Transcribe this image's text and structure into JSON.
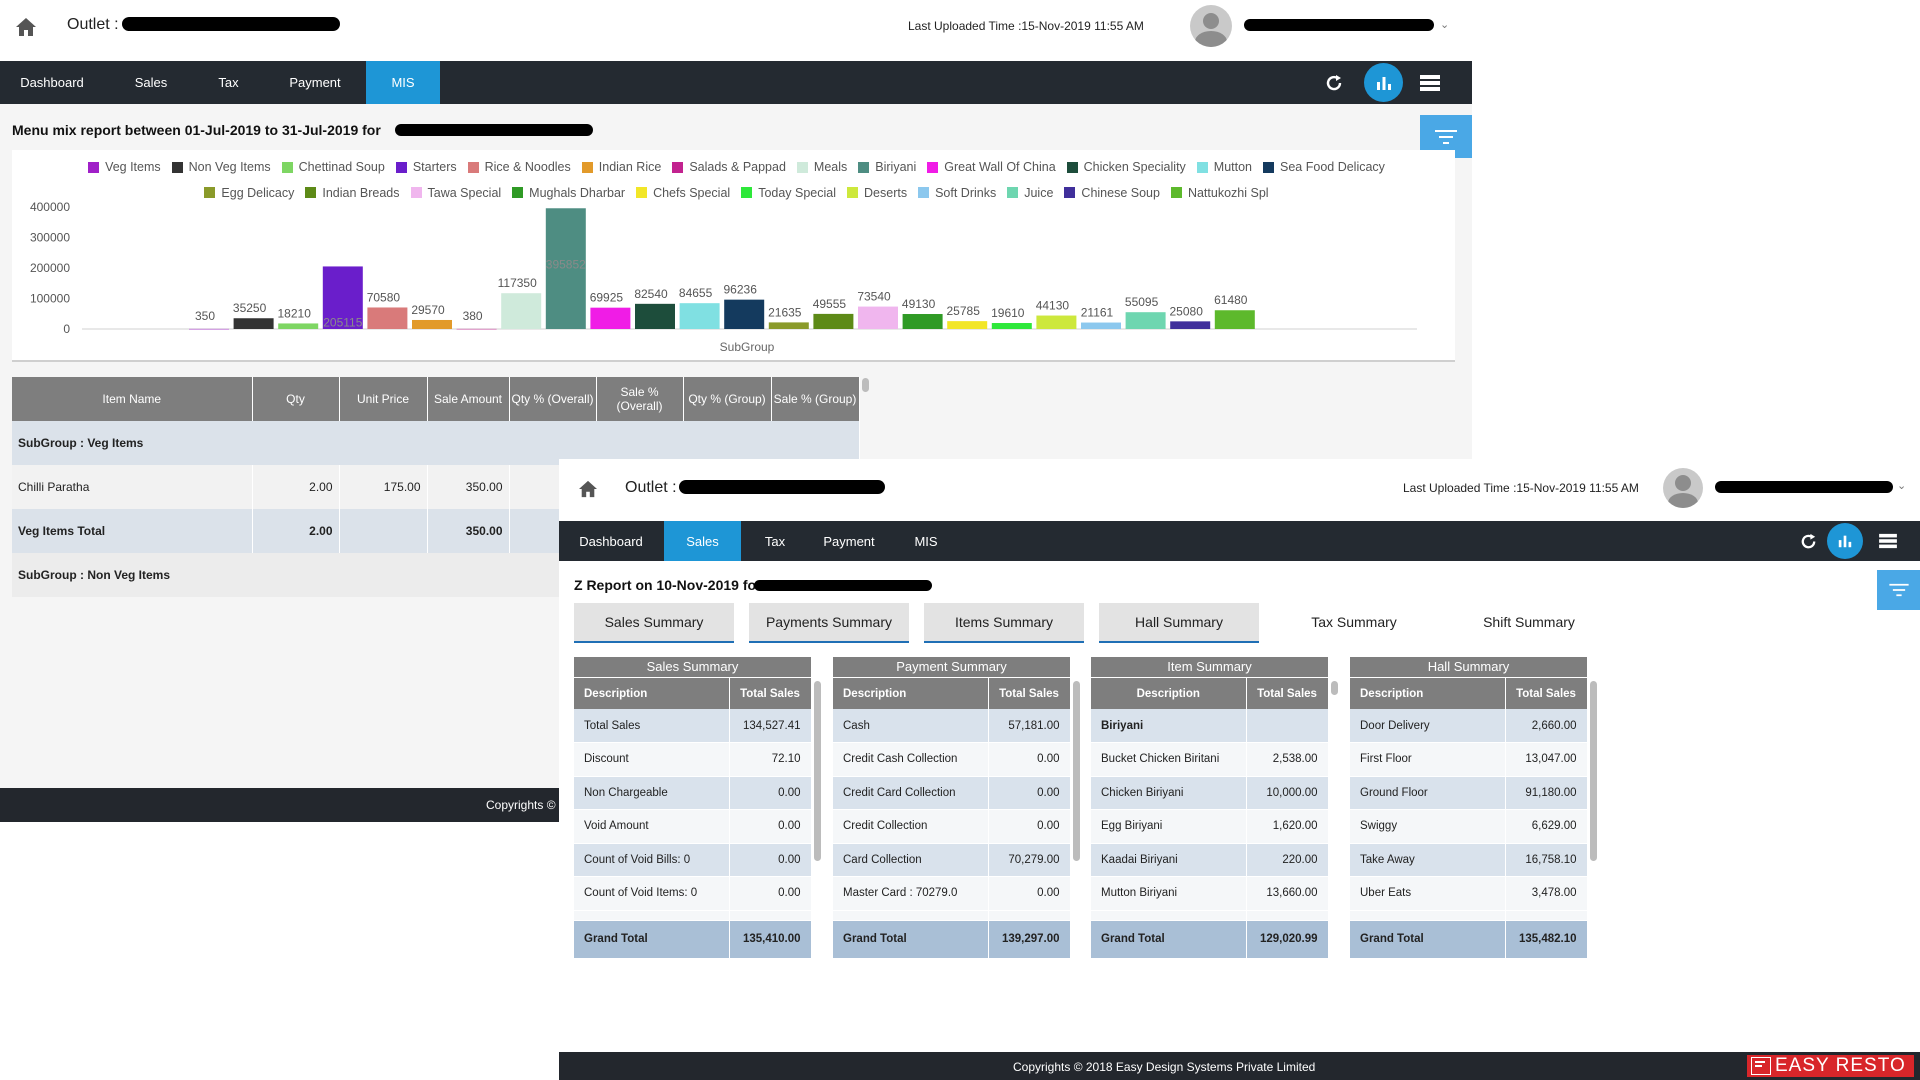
{
  "window1": {
    "outlet_label": "Outlet :",
    "last_uploaded": "Last Uploaded Time :15-Nov-2019 11:55 AM",
    "nav": [
      "Dashboard",
      "Sales",
      "Tax",
      "Payment",
      "MIS"
    ],
    "active_tab": "MIS",
    "report_title": "Menu mix report between 01-Jul-2019 to 31-Jul-2019 for",
    "table": {
      "headers": [
        "Item Name",
        "Qty",
        "Unit Price",
        "Sale Amount",
        "Qty % (Overall)",
        "Sale % (Overall)",
        "Qty % (Group)",
        "Sale % (Group)"
      ],
      "subgroup1": "SubGroup : Veg Items",
      "row": [
        "Chilli Paratha",
        "2.00",
        "175.00",
        "350.00"
      ],
      "total": [
        "Veg Items Total",
        "2.00",
        "",
        "350.00"
      ],
      "subgroup2": "SubGroup : Non Veg Items"
    },
    "footer_text": "Copyrights ©"
  },
  "chart_data": {
    "type": "bar",
    "title": "",
    "xlabel": "SubGroup",
    "ylabel": "",
    "ylim": [
      0,
      400000
    ],
    "yticks": [
      "400000",
      "300000",
      "200000",
      "100000",
      "0"
    ],
    "legend_position": "top",
    "categories": [
      "Veg Items",
      "Non Veg Items",
      "Chettinad Soup",
      "Starters",
      "Rice & Noodles",
      "Indian Rice",
      "Salads & Pappad",
      "Meals",
      "Biriyani",
      "Great Wall Of China",
      "Chicken Speciality",
      "Mutton",
      "Sea Food Delicacy",
      "Egg Delicacy",
      "Indian Breads",
      "Tawa Special",
      "Mughals Dharbar",
      "Chefs Special",
      "Today Special",
      "Deserts",
      "Soft Drinks",
      "Juice",
      "Chinese Soup",
      "Nattukozhi Spl"
    ],
    "values": [
      350,
      35250,
      18210,
      205115,
      70580,
      29570,
      380,
      117350,
      395852,
      69925,
      82540,
      84655,
      96236,
      21635,
      49555,
      73540,
      49130,
      25785,
      19610,
      44130,
      21161,
      55095,
      25080,
      61480
    ],
    "labels": [
      "350",
      "35250",
      "18210",
      "205115",
      "70580",
      "29570",
      "380",
      "117350",
      "395852",
      "69925",
      "82540",
      "84655",
      "96236",
      "21635",
      "49555",
      "73540",
      "49130",
      "25785",
      "19610",
      "44130",
      "21161",
      "55095",
      "25080",
      "61480"
    ],
    "colors": [
      "#a020c8",
      "#333333",
      "#7ed663",
      "#6a1ecb",
      "#d97a7a",
      "#e29a2a",
      "#c2228f",
      "#cfeadb",
      "#4e8d82",
      "#f01ce6",
      "#1d4d3b",
      "#80e0e2",
      "#143a5e",
      "#8a9a2a",
      "#5d8a17",
      "#f0b6ee",
      "#2f9a25",
      "#f2e628",
      "#2ee83a",
      "#cde83c",
      "#8cc8ee",
      "#6ed6b0",
      "#402f9b",
      "#5db92c"
    ]
  },
  "window2": {
    "outlet_label": "Outlet :",
    "last_uploaded": "Last Uploaded Time :15-Nov-2019 11:55 AM",
    "nav": [
      "Dashboard",
      "Sales",
      "Tax",
      "Payment",
      "MIS"
    ],
    "active_tab": "Sales",
    "report_title": "Z Report on 10-Nov-2019 for",
    "tabs": [
      "Sales Summary",
      "Payments Summary",
      "Items Summary",
      "Hall Summary",
      "Tax Summary",
      "Shift Summary"
    ],
    "sections": [
      {
        "title": "Sales Summary",
        "headers": [
          "Description",
          "Total Sales"
        ],
        "rows": [
          [
            "Total Sales",
            "134,527.41"
          ],
          [
            "Discount",
            "72.10"
          ],
          [
            "Non Chargeable",
            "0.00"
          ],
          [
            "Void Amount",
            "0.00"
          ],
          [
            "Count of Void Bills: 0",
            "0.00"
          ],
          [
            "Count of Void Items: 0",
            "0.00"
          ]
        ],
        "grand": [
          "Grand Total",
          "135,410.00"
        ]
      },
      {
        "title": "Payment Summary",
        "headers": [
          "Description",
          "Total Sales"
        ],
        "rows": [
          [
            "Cash",
            "57,181.00"
          ],
          [
            "Credit Cash Collection",
            "0.00"
          ],
          [
            "Credit Card Collection",
            "0.00"
          ],
          [
            "Credit Collection",
            "0.00"
          ],
          [
            "Card Collection",
            "70,279.00"
          ],
          [
            "Master Card : 70279.0",
            "0.00"
          ]
        ],
        "grand": [
          "Grand Total",
          "139,297.00"
        ]
      },
      {
        "title": "Item Summary",
        "headers": [
          "Description",
          "Total Sales"
        ],
        "rows": [
          [
            "Biriyani",
            ""
          ],
          [
            "Bucket Chicken Biritani",
            "2,538.00"
          ],
          [
            "Chicken Biriyani",
            "10,000.00"
          ],
          [
            "Egg Biriyani",
            "1,620.00"
          ],
          [
            "Kaadai Biriyani",
            "220.00"
          ],
          [
            "Mutton Biriyani",
            "13,660.00"
          ]
        ],
        "grand": [
          "Grand Total",
          "129,020.99"
        ]
      },
      {
        "title": "Hall Summary",
        "headers": [
          "Description",
          "Total Sales"
        ],
        "rows": [
          [
            "Door Delivery",
            "2,660.00"
          ],
          [
            "First Floor",
            "13,047.00"
          ],
          [
            "Ground Floor",
            "91,180.00"
          ],
          [
            "Swiggy",
            "6,629.00"
          ],
          [
            "Take Away",
            "16,758.10"
          ],
          [
            "Uber Eats",
            "3,478.00"
          ]
        ],
        "grand": [
          "Grand Total",
          "135,482.10"
        ]
      }
    ],
    "footer_text": "Copyrights © 2018 Easy Design Systems Private Limited",
    "brand": "EASY RESTO"
  }
}
